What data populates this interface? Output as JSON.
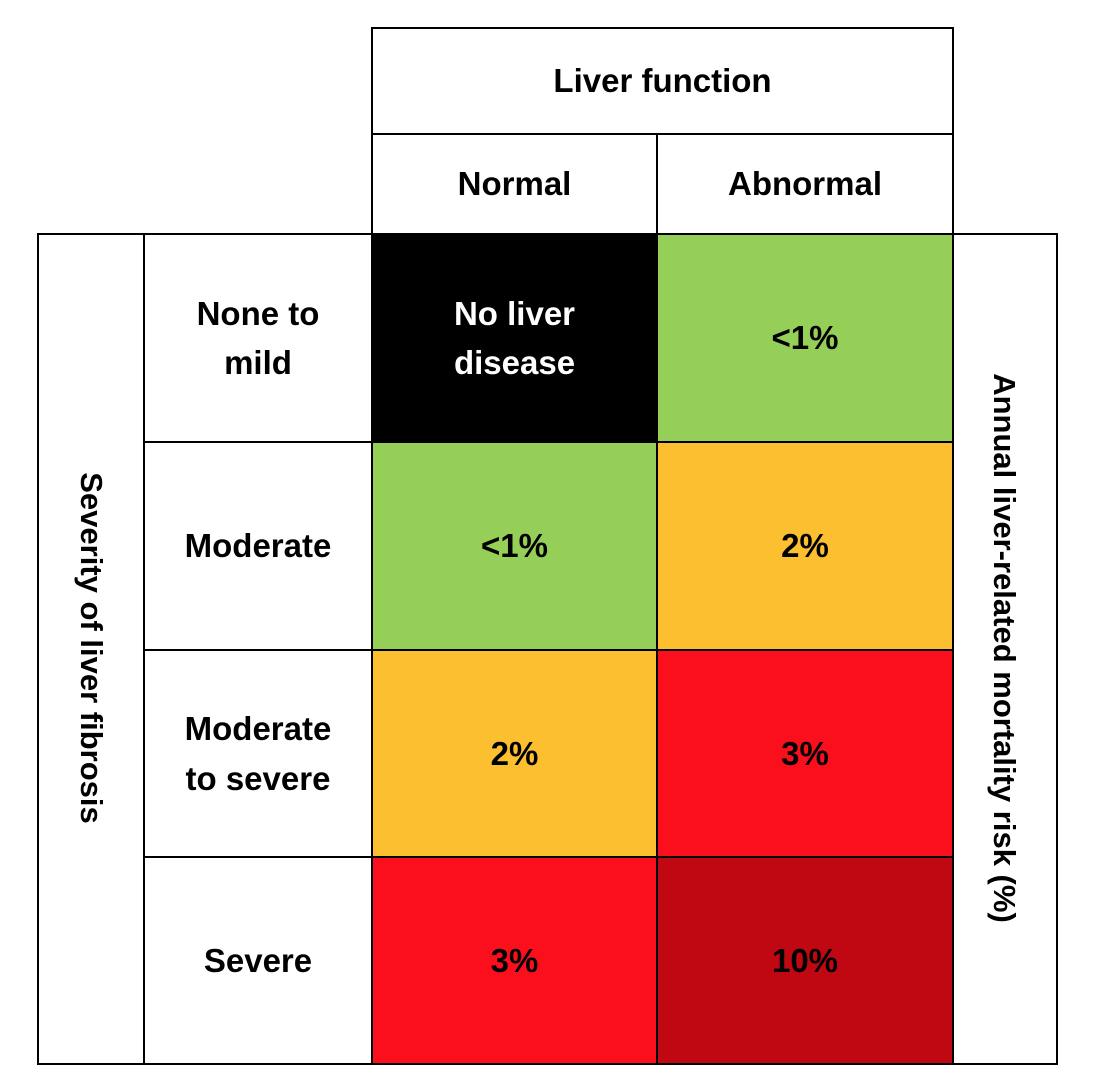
{
  "header": {
    "title": "Liver function",
    "columns": [
      "Normal",
      "Abnormal"
    ]
  },
  "axis": {
    "left_label": "Severity of liver fibrosis",
    "right_label": "Annual liver-related mortality risk (%)"
  },
  "rows": [
    {
      "label": "None to\nmild",
      "cells": [
        "No liver\ndisease",
        "<1%"
      ]
    },
    {
      "label": "Moderate",
      "cells": [
        "<1%",
        "2%"
      ]
    },
    {
      "label": "Moderate\nto severe",
      "cells": [
        "2%",
        "3%"
      ]
    },
    {
      "label": "Severe",
      "cells": [
        "3%",
        "10%"
      ]
    }
  ],
  "colors": {
    "black": "#000000",
    "green": "#95cf58",
    "amber": "#fbbf30",
    "red": "#fc0f1d",
    "dark_red": "#c00812",
    "white_text": "#ffffff"
  }
}
